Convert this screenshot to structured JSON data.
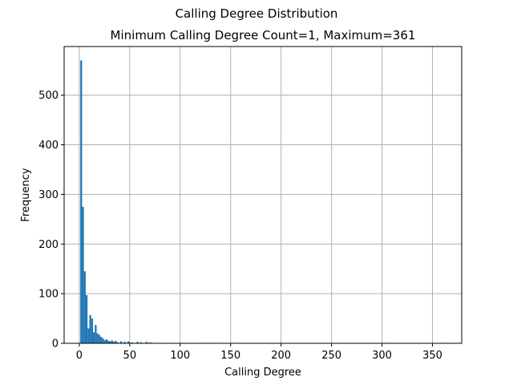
{
  "figure": {
    "suptitle": "Calling Degree Distribution"
  },
  "chart_data": {
    "type": "bar",
    "subtype": "histogram",
    "title": "Minimum Calling Degree Count=1, Maximum=361",
    "xlabel": "Calling Degree",
    "ylabel": "Frequency",
    "xlim": [
      -15,
      379
    ],
    "ylim": [
      0,
      598
    ],
    "xticks": [
      0,
      50,
      100,
      150,
      200,
      250,
      300,
      350
    ],
    "yticks": [
      0,
      100,
      200,
      300,
      400,
      500
    ],
    "grid": true,
    "bar_color": "#1f77b4",
    "bin_width": 1.8,
    "bins": [
      {
        "x": 1.0,
        "value": 570
      },
      {
        "x": 2.8,
        "value": 275
      },
      {
        "x": 4.6,
        "value": 145
      },
      {
        "x": 6.4,
        "value": 97
      },
      {
        "x": 8.2,
        "value": 30
      },
      {
        "x": 10.0,
        "value": 57
      },
      {
        "x": 11.8,
        "value": 50
      },
      {
        "x": 13.6,
        "value": 22
      },
      {
        "x": 15.4,
        "value": 37
      },
      {
        "x": 17.2,
        "value": 20
      },
      {
        "x": 19.0,
        "value": 17
      },
      {
        "x": 20.8,
        "value": 13
      },
      {
        "x": 22.6,
        "value": 10
      },
      {
        "x": 24.4,
        "value": 6
      },
      {
        "x": 26.2,
        "value": 8
      },
      {
        "x": 28.0,
        "value": 5
      },
      {
        "x": 29.8,
        "value": 4
      },
      {
        "x": 31.6,
        "value": 6
      },
      {
        "x": 33.4,
        "value": 3
      },
      {
        "x": 35.2,
        "value": 5
      },
      {
        "x": 37.0,
        "value": 2
      },
      {
        "x": 40.6,
        "value": 4
      },
      {
        "x": 44.2,
        "value": 3
      },
      {
        "x": 47.8,
        "value": 4
      },
      {
        "x": 51.4,
        "value": 2
      },
      {
        "x": 56.8,
        "value": 3
      },
      {
        "x": 60.4,
        "value": 2
      },
      {
        "x": 65.8,
        "value": 3
      },
      {
        "x": 69.4,
        "value": 2
      },
      {
        "x": 74.8,
        "value": 1
      },
      {
        "x": 101.8,
        "value": 1
      },
      {
        "x": 123.4,
        "value": 1
      },
      {
        "x": 132.4,
        "value": 1
      },
      {
        "x": 141.4,
        "value": 1
      },
      {
        "x": 155.8,
        "value": 1
      },
      {
        "x": 303.4,
        "value": 1
      },
      {
        "x": 359.2,
        "value": 1
      }
    ]
  }
}
